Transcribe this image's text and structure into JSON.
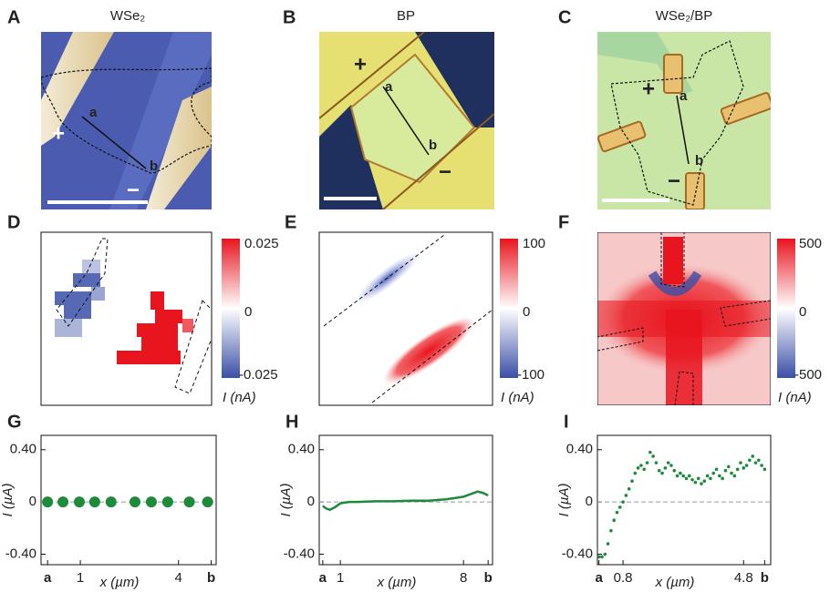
{
  "panels": [
    {
      "label": "A",
      "title": "WSe₂",
      "annotations": [
        "a",
        "b",
        "+",
        "−"
      ]
    },
    {
      "label": "B",
      "title": "BP",
      "annotations": [
        "a",
        "b",
        "+",
        "−"
      ]
    },
    {
      "label": "C",
      "title": "WSe₂/BP",
      "annotations": [
        "a",
        "b",
        "+",
        "−"
      ]
    },
    {
      "label": "D",
      "colorbar_labels": [
        "0.025",
        "0",
        "-0.025"
      ],
      "colorbar_title": "I (nA)"
    },
    {
      "label": "E",
      "colorbar_labels": [
        "100",
        "0",
        "-100"
      ],
      "colorbar_title": "I (nA)"
    },
    {
      "label": "F",
      "colorbar_labels": [
        "500",
        "0",
        "-500"
      ],
      "colorbar_title": "I (nA)"
    }
  ],
  "chart_data": [
    {
      "type": "scatter",
      "label": "G",
      "color": "#1e8a3c",
      "x": [
        0,
        0.47,
        0.97,
        1.44,
        1.94,
        2.67,
        3.17,
        3.67,
        4.33,
        4.89
      ],
      "values": [
        0,
        0,
        0,
        0,
        0,
        0,
        0,
        0,
        0,
        0
      ],
      "xlim": [
        -0.2,
        5.15
      ],
      "xticks": [
        {
          "value": 0,
          "label": "a"
        },
        1,
        4,
        {
          "value": 5,
          "label": "b"
        }
      ],
      "ylim": [
        -0.48,
        0.51
      ],
      "yticks": [
        {
          "value": 0.4,
          "label": "0.40"
        },
        0,
        {
          "value": -0.4,
          "label": "-0.40"
        }
      ],
      "x_label": "x (µm)",
      "y_label": "I (µA)",
      "zero_line": true
    },
    {
      "type": "line",
      "label": "H",
      "color": "#1e8a3c",
      "x": [
        0,
        0.2,
        0.4,
        0.7,
        1.0,
        1.5,
        2,
        3,
        4,
        5,
        6,
        6.5,
        7,
        7.5,
        8,
        8.4,
        8.8,
        9.1,
        9.4
      ],
      "values": [
        -0.03,
        -0.05,
        -0.06,
        -0.04,
        -0.01,
        0.0,
        0.0,
        0.005,
        0.005,
        0.01,
        0.01,
        0.015,
        0.02,
        0.03,
        0.04,
        0.06,
        0.08,
        0.07,
        0.05
      ],
      "xlim": [
        -0.2,
        9.65
      ],
      "xticks": [
        {
          "value": 0,
          "label": "a"
        },
        1,
        8,
        {
          "value": 9.4,
          "label": "b"
        }
      ],
      "ylim": [
        -0.48,
        0.51
      ],
      "yticks": [
        {
          "value": 0.4,
          "label": "0.40"
        },
        0,
        {
          "value": -0.4,
          "label": "-0.40"
        }
      ],
      "x_label": "x (µm)",
      "y_label": "I (µA)",
      "zero_line": true
    },
    {
      "type": "scatter",
      "label": "I",
      "color": "#1e8a3c",
      "marker_size": 1.8,
      "x": [
        0,
        0.1,
        0.2,
        0.3,
        0.4,
        0.5,
        0.6,
        0.7,
        0.8,
        0.9,
        1.0,
        1.1,
        1.2,
        1.3,
        1.4,
        1.5,
        1.6,
        1.7,
        1.8,
        1.9,
        2.0,
        2.1,
        2.2,
        2.3,
        2.4,
        2.5,
        2.6,
        2.7,
        2.8,
        2.9,
        3.0,
        3.1,
        3.2,
        3.3,
        3.4,
        3.5,
        3.6,
        3.7,
        3.8,
        3.9,
        4.0,
        4.1,
        4.2,
        4.3,
        4.4,
        4.5,
        4.6,
        4.7,
        4.8,
        4.9,
        5.0,
        5.1,
        5.2,
        5.3,
        5.4,
        5.5
      ],
      "values": [
        -0.42,
        -0.42,
        -0.4,
        -0.32,
        -0.22,
        -0.14,
        -0.08,
        -0.04,
        0.0,
        0.05,
        0.1,
        0.16,
        0.22,
        0.26,
        0.28,
        0.25,
        0.3,
        0.38,
        0.35,
        0.3,
        0.24,
        0.22,
        0.26,
        0.3,
        0.28,
        0.24,
        0.2,
        0.22,
        0.2,
        0.18,
        0.2,
        0.17,
        0.15,
        0.18,
        0.14,
        0.16,
        0.2,
        0.18,
        0.22,
        0.25,
        0.2,
        0.18,
        0.24,
        0.27,
        0.22,
        0.2,
        0.25,
        0.3,
        0.26,
        0.28,
        0.32,
        0.35,
        0.3,
        0.32,
        0.28,
        0.25
      ],
      "xlim": [
        -0.05,
        5.7
      ],
      "xticks": [
        {
          "value": 0,
          "label": "a"
        },
        0.8,
        4.8,
        {
          "value": 5.5,
          "label": "b"
        }
      ],
      "ylim": [
        -0.48,
        0.51
      ],
      "yticks": [
        {
          "value": 0.4,
          "label": "0.40"
        },
        0,
        {
          "value": -0.4,
          "label": "-0.40"
        }
      ],
      "x_label": "x (µm)",
      "y_label": "I (µA)",
      "zero_line": true
    }
  ]
}
